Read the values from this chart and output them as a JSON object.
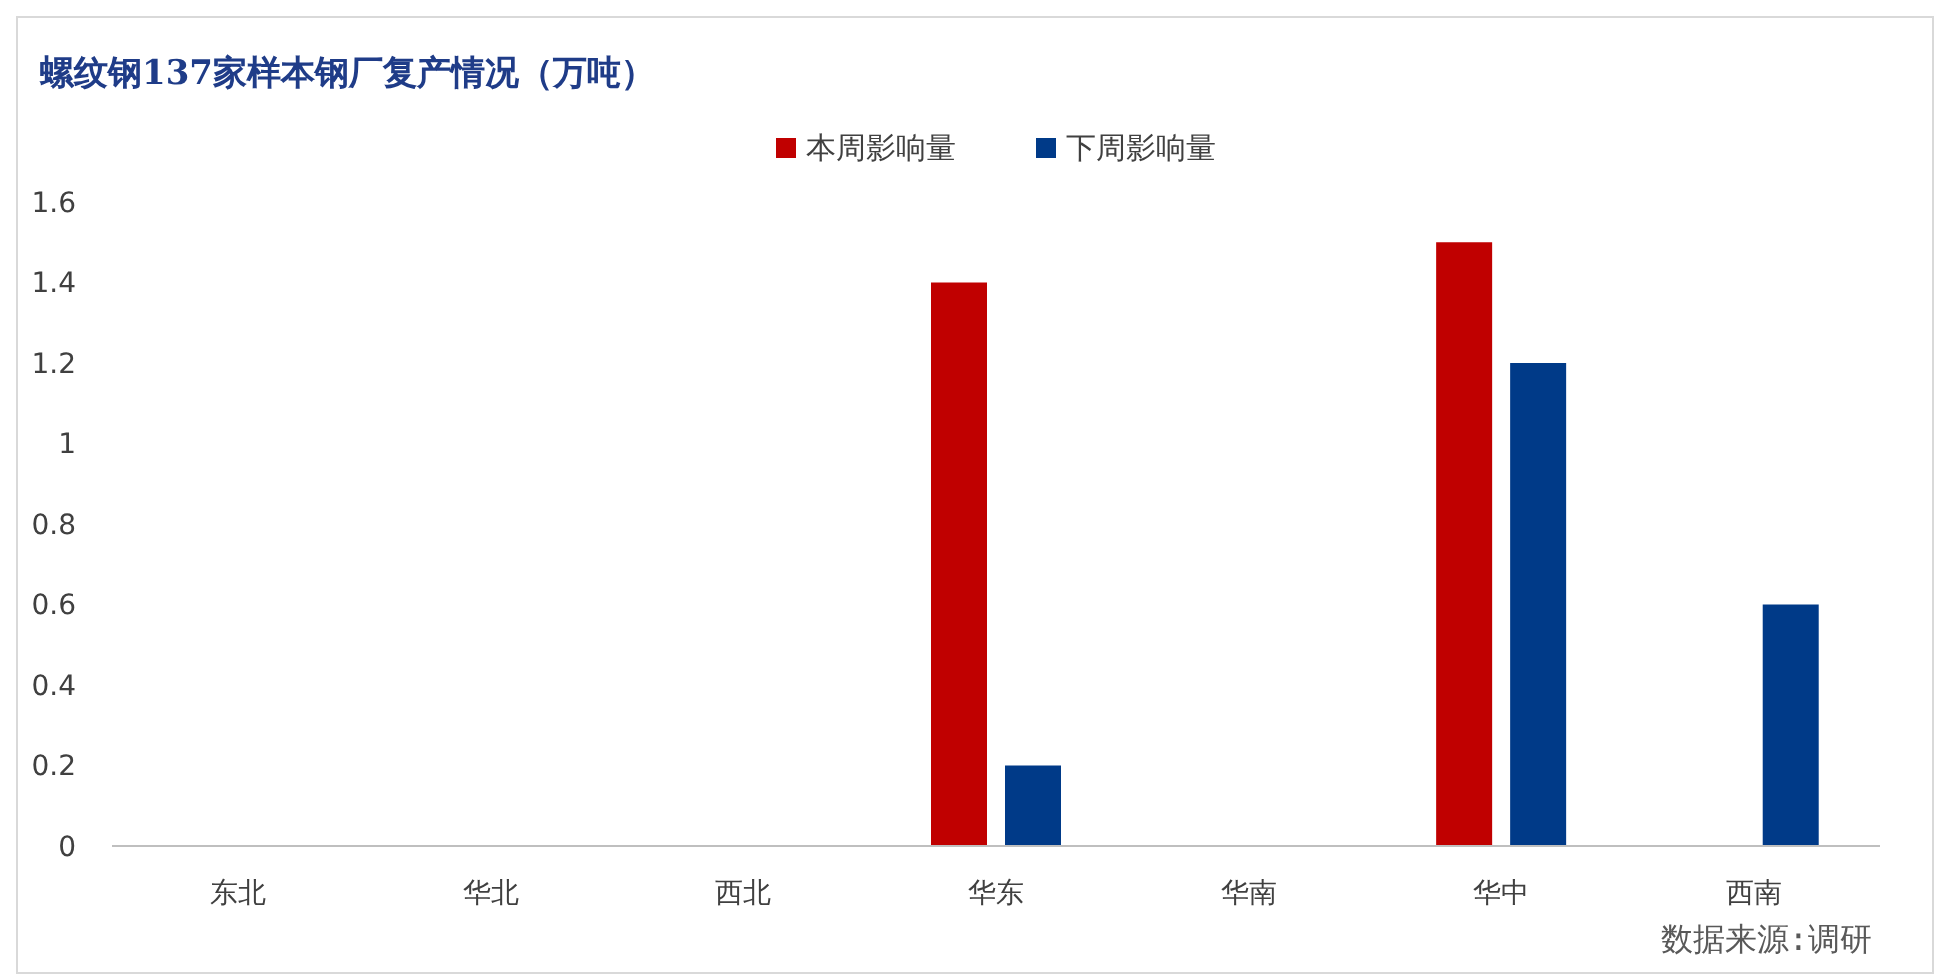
{
  "chart_data": {
    "type": "bar",
    "title": "螺纹钢137家样本钢厂复产情况（万吨）",
    "categories": [
      "东北",
      "华北",
      "西北",
      "华东",
      "华南",
      "华中",
      "西南"
    ],
    "series": [
      {
        "name": "本周影响量",
        "color": "#c00000",
        "values": [
          0,
          0,
          0,
          1.4,
          0,
          1.5,
          0
        ]
      },
      {
        "name": "下周影响量",
        "color": "#003a88",
        "values": [
          0,
          0,
          0,
          0.2,
          0,
          1.2,
          0.6
        ]
      }
    ],
    "ylim": [
      0,
      1.6
    ],
    "yticks": [
      0,
      0.2,
      0.4,
      0.6,
      0.8,
      1,
      1.2,
      1.4,
      1.6
    ],
    "grid": false,
    "legend": "top",
    "annotations": [
      "数据来源:调研"
    ]
  }
}
